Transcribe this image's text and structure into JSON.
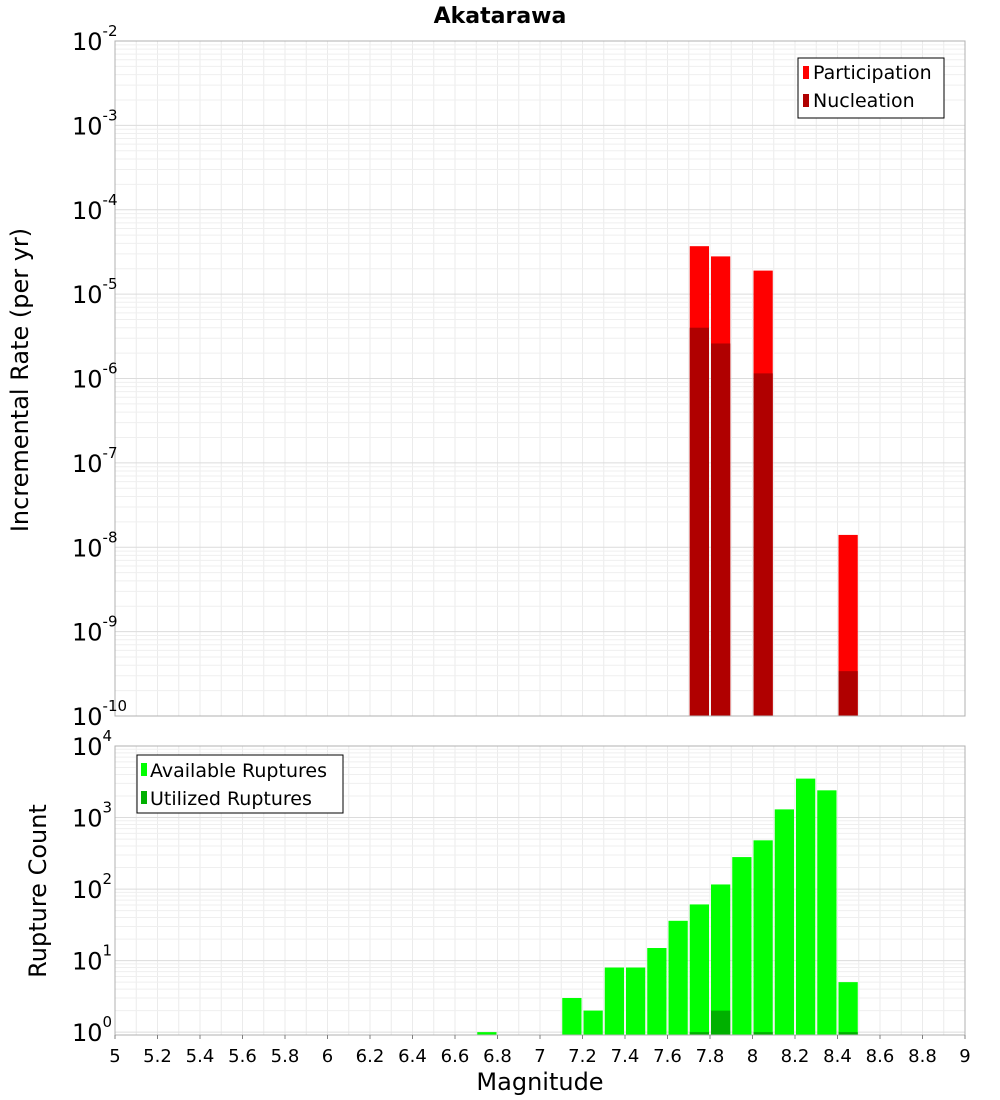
{
  "chart_data": [
    {
      "type": "bar",
      "title": "Akatarawa",
      "ylabel": "Incremental Rate (per yr)",
      "xlabel": "",
      "yscale": "log",
      "ylim_exp": [
        -10,
        -2
      ],
      "xlim": [
        5,
        9
      ],
      "bin_width": 0.1,
      "grid": true,
      "legend_position": "top-right",
      "series": [
        {
          "name": "Participation",
          "color": "#ff0000",
          "x": [
            7.75,
            7.85,
            8.05,
            8.45
          ],
          "values": [
            3.7e-05,
            2.8e-05,
            1.9e-05,
            1.4e-08
          ]
        },
        {
          "name": "Nucleation",
          "color": "#b00000",
          "x": [
            7.75,
            7.85,
            8.05,
            8.45
          ],
          "values": [
            4e-06,
            2.6e-06,
            1.15e-06,
            3.4e-10
          ]
        }
      ]
    },
    {
      "type": "bar",
      "title": "",
      "ylabel": "Rupture Count",
      "xlabel": "Magnitude",
      "yscale": "log",
      "ylim_exp": [
        -0.04,
        4
      ],
      "ytick_exps": [
        0,
        1,
        2,
        3,
        4
      ],
      "xlim": [
        5,
        9
      ],
      "xticks": [
        "5",
        "5.2",
        "5.4",
        "5.6",
        "5.8",
        "6",
        "6.2",
        "6.4",
        "6.6",
        "6.8",
        "7",
        "7.2",
        "7.4",
        "7.6",
        "7.8",
        "8",
        "8.2",
        "8.4",
        "8.6",
        "8.8",
        "9"
      ],
      "bin_width": 0.1,
      "grid": true,
      "legend_position": "top-left",
      "series": [
        {
          "name": "Available Ruptures",
          "color": "#00ff00",
          "x": [
            6.75,
            7.15,
            7.25,
            7.35,
            7.45,
            7.55,
            7.65,
            7.75,
            7.85,
            7.95,
            8.05,
            8.15,
            8.25,
            8.35,
            8.45
          ],
          "values": [
            1,
            3,
            2,
            8,
            8,
            15,
            36,
            61,
            116,
            280,
            480,
            1300,
            3500,
            2400,
            5
          ]
        },
        {
          "name": "Utilized Ruptures",
          "color": "#00b000",
          "x": [
            7.75,
            7.85,
            8.05,
            8.45
          ],
          "values": [
            1,
            2,
            1,
            1
          ]
        }
      ]
    }
  ]
}
